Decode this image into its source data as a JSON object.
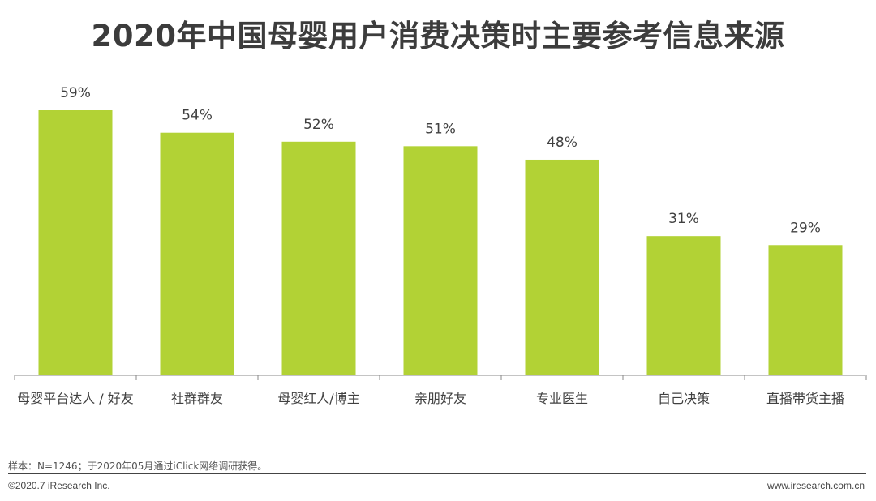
{
  "chart_data": {
    "type": "bar",
    "title": "2020年中国母婴用户消费决策时主要参考信息来源",
    "categories": [
      "母婴平台达人 / 好友",
      "社群群友",
      "母婴红人/博主",
      "亲朋好友",
      "专业医生",
      "自己决策",
      "直播带货主播"
    ],
    "values": [
      59,
      54,
      52,
      51,
      48,
      31,
      29
    ],
    "value_labels": [
      "59%",
      "54%",
      "52%",
      "51%",
      "48%",
      "31%",
      "29%"
    ],
    "xlabel": "",
    "ylabel": "",
    "ylim": [
      0,
      59
    ],
    "grid": false,
    "bar_color": "#b2d235",
    "axis_color": "#888888"
  },
  "footer": {
    "note": "样本：N=1246；于2020年05月通过iClick网络调研获得。",
    "copyright": "©2020.7 iResearch Inc.",
    "website": "www.iresearch.com.cn"
  }
}
